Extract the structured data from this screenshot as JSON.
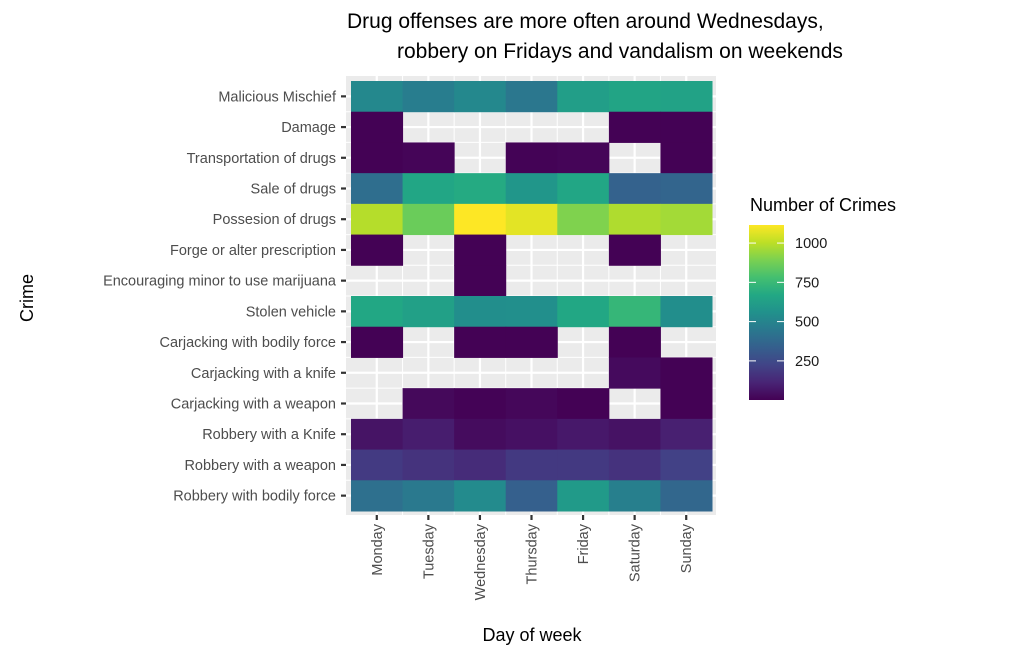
{
  "chart_data": {
    "type": "heatmap",
    "title": [
      "Drug offenses are more often around Wednesdays,",
      "robbery on Fridays and vandalism on weekends"
    ],
    "xlabel": "Day of week",
    "ylabel": "Crime",
    "x": [
      "Monday",
      "Tuesday",
      "Wednesday",
      "Thursday",
      "Friday",
      "Saturday",
      "Sunday"
    ],
    "y": [
      "Malicious Mischief",
      "Damage",
      "Transportation of drugs",
      "Sale of drugs",
      "Possesion of drugs",
      "Forge or alter prescription",
      "Encouraging minor to use marijuana",
      "Stolen vehicle",
      "Carjacking with bodily force",
      "Carjacking with a knife",
      "Carjacking with a weapon",
      "Robbery with a Knife",
      "Robbery with a weapon",
      "Robbery with bodily force"
    ],
    "values": [
      [
        520,
        470,
        520,
        440,
        620,
        650,
        640
      ],
      [
        3,
        null,
        null,
        null,
        null,
        3,
        5
      ],
      [
        3,
        15,
        null,
        8,
        15,
        null,
        3
      ],
      [
        400,
        660,
        680,
        580,
        660,
        350,
        360
      ],
      [
        990,
        860,
        1115,
        1070,
        900,
        980,
        960
      ],
      [
        3,
        null,
        3,
        null,
        null,
        3,
        null
      ],
      [
        null,
        null,
        3,
        null,
        null,
        null,
        null
      ],
      [
        665,
        630,
        545,
        550,
        665,
        735,
        545
      ],
      [
        3,
        null,
        3,
        3,
        null,
        3,
        null
      ],
      [
        null,
        null,
        null,
        null,
        null,
        30,
        5
      ],
      [
        null,
        25,
        8,
        20,
        5,
        null,
        5
      ],
      [
        60,
        90,
        35,
        50,
        75,
        55,
        100
      ],
      [
        190,
        165,
        140,
        185,
        185,
        160,
        215
      ],
      [
        410,
        450,
        530,
        340,
        600,
        480,
        370
      ]
    ],
    "colorscale": "viridis",
    "value_range": [
      1,
      1115
    ],
    "legend": {
      "title": "Number of Crimes",
      "ticks": [
        250,
        500,
        750,
        1000
      ],
      "position": "right"
    },
    "missing_color": "#ebebeb",
    "grid": true
  }
}
